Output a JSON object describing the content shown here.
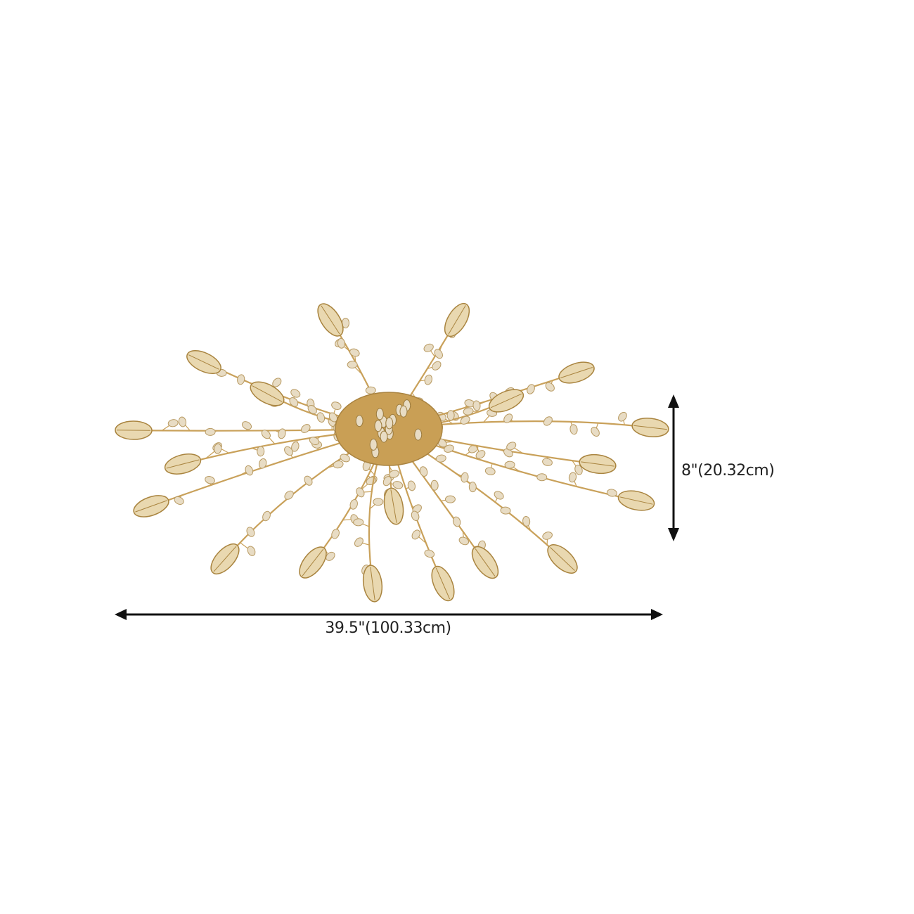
{
  "dimensions": {
    "width_label": "39.5\"(100.33cm)",
    "height_label": "8\"(20.32cm)"
  },
  "product": {
    "type": "gold crystal leaf branch flush-mount ceiling light",
    "colors": {
      "metal": "#c9a15a",
      "crystal": "#e8dcc4",
      "arrow": "#111111"
    }
  }
}
